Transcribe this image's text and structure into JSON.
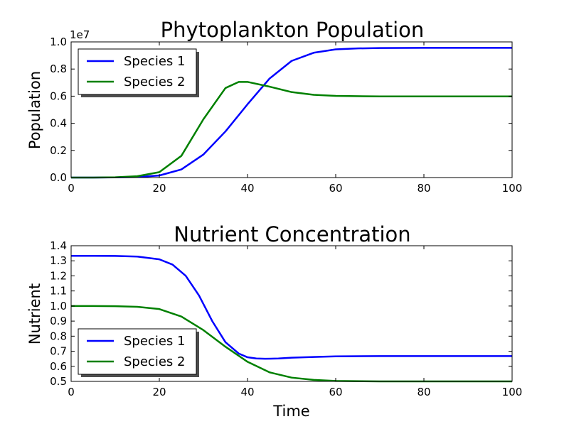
{
  "chart_data": [
    {
      "type": "line",
      "title": "Phytoplankton Population",
      "xlabel": "",
      "ylabel": "Population",
      "y_offset_label": "1e7",
      "xlim": [
        0,
        100
      ],
      "ylim": [
        0,
        1.0
      ],
      "x_ticks": [
        "0",
        "20",
        "40",
        "60",
        "80",
        "100"
      ],
      "y_ticks": [
        "0.0",
        "0.2",
        "0.4",
        "0.6",
        "0.8",
        "1.0"
      ],
      "legend_position": "top-left",
      "grid": false,
      "series": [
        {
          "name": "Species 1",
          "color": "#0000ff",
          "x": [
            0,
            5,
            10,
            15,
            20,
            25,
            30,
            35,
            40,
            45,
            50,
            55,
            60,
            65,
            70,
            80,
            90,
            100
          ],
          "values": [
            0.0,
            0.0,
            0.001,
            0.004,
            0.015,
            0.06,
            0.17,
            0.34,
            0.54,
            0.73,
            0.86,
            0.92,
            0.945,
            0.952,
            0.955,
            0.956,
            0.956,
            0.956
          ]
        },
        {
          "name": "Species 2",
          "color": "#008000",
          "x": [
            0,
            5,
            10,
            15,
            20,
            25,
            30,
            35,
            38,
            40,
            45,
            50,
            55,
            60,
            70,
            80,
            90,
            100
          ],
          "values": [
            0.0,
            0.0,
            0.002,
            0.01,
            0.04,
            0.16,
            0.43,
            0.66,
            0.705,
            0.705,
            0.67,
            0.63,
            0.61,
            0.602,
            0.598,
            0.598,
            0.598,
            0.598
          ]
        }
      ]
    },
    {
      "type": "line",
      "title": "Nutrient Concentration",
      "xlabel": "Time",
      "ylabel": "Nutrient",
      "xlim": [
        0,
        100
      ],
      "ylim": [
        0.5,
        1.4
      ],
      "x_ticks": [
        "0",
        "20",
        "40",
        "60",
        "80",
        "100"
      ],
      "y_ticks": [
        "0.5",
        "0.6",
        "0.7",
        "0.8",
        "0.9",
        "1.0",
        "1.1",
        "1.2",
        "1.3",
        "1.4"
      ],
      "legend_position": "bottom-left",
      "grid": false,
      "series": [
        {
          "name": "Species 1",
          "color": "#0000ff",
          "x": [
            0,
            5,
            10,
            15,
            20,
            23,
            26,
            29,
            32,
            35,
            38,
            40,
            42,
            44,
            47,
            50,
            55,
            60,
            70,
            80,
            90,
            100
          ],
          "values": [
            1.333,
            1.333,
            1.332,
            1.328,
            1.31,
            1.275,
            1.2,
            1.07,
            0.9,
            0.76,
            0.685,
            0.66,
            0.652,
            0.65,
            0.652,
            0.657,
            0.662,
            0.666,
            0.668,
            0.668,
            0.668,
            0.668
          ]
        },
        {
          "name": "Species 2",
          "color": "#008000",
          "x": [
            0,
            5,
            10,
            15,
            20,
            25,
            30,
            35,
            40,
            45,
            50,
            55,
            60,
            70,
            80,
            90,
            100
          ],
          "values": [
            1.0,
            1.0,
            0.999,
            0.995,
            0.98,
            0.93,
            0.84,
            0.73,
            0.63,
            0.56,
            0.525,
            0.51,
            0.503,
            0.5,
            0.5,
            0.5,
            0.5
          ]
        }
      ]
    }
  ]
}
